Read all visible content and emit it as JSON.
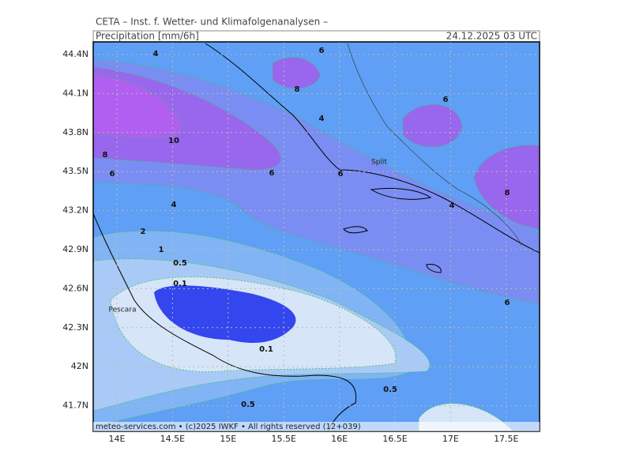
{
  "header": {
    "title": "CETA – Inst. f. Wetter- und Klimafolgenanalysen –",
    "parameter": "Precipitation [mm/6h]",
    "datetime": "24.12.2025 03 UTC"
  },
  "map": {
    "lat_labels": [
      "44.4N",
      "44.1N",
      "43.8N",
      "43.5N",
      "43.2N",
      "42.9N",
      "42.6N",
      "42.3N",
      "42N",
      "41.7N"
    ],
    "lon_labels": [
      "14E",
      "14.5E",
      "15E",
      "15.5E",
      "16E",
      "16.5E",
      "17E",
      "17.5E"
    ],
    "contour_labels": [
      "4",
      "6",
      "8",
      "6",
      "4",
      "10",
      "8",
      "6",
      "6",
      "6",
      "8",
      "4",
      "4",
      "2",
      "1",
      "0.5",
      "0.1",
      "0.1",
      "6",
      "0.5",
      "0.5"
    ],
    "places": [
      "Split",
      "Pescara"
    ],
    "footer": "meteo-services.com • (c)2025 IWKF • All rights reserved (12+039)"
  }
}
